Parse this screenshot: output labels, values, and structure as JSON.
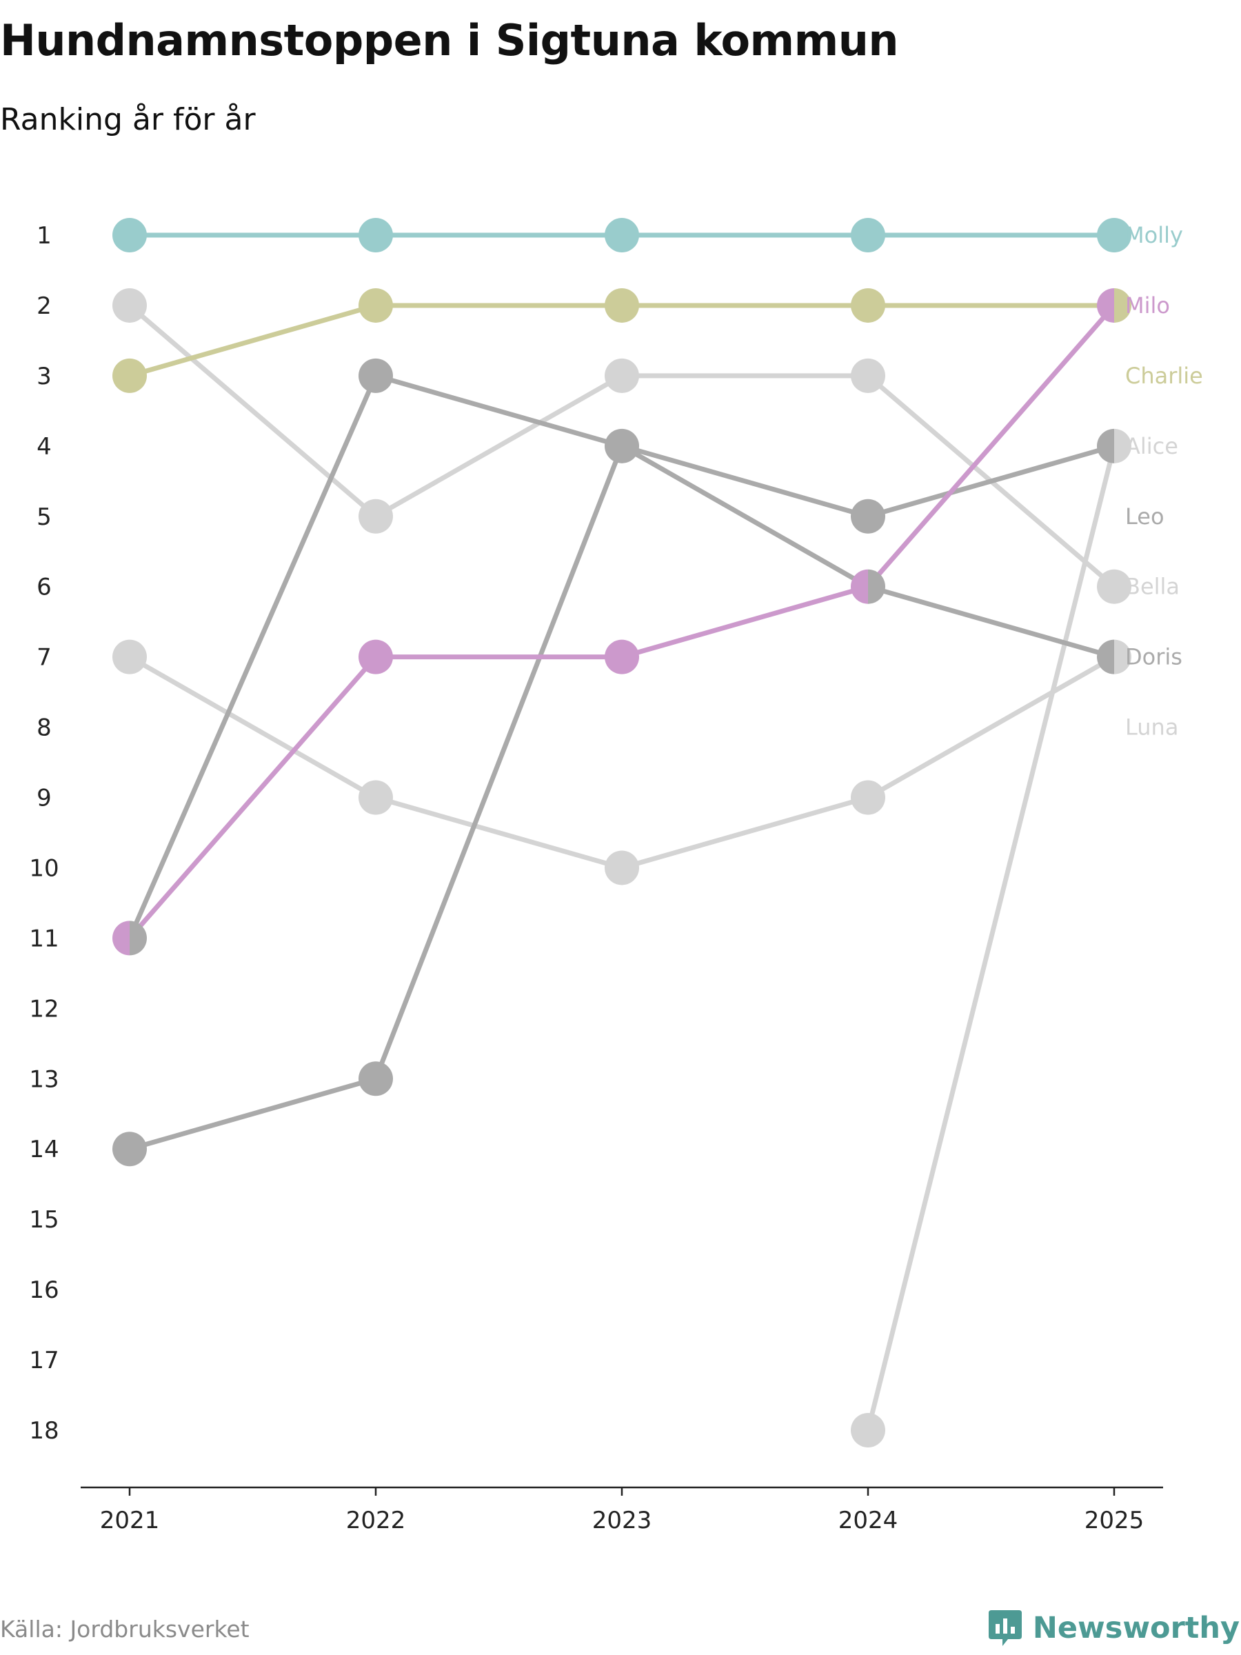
{
  "title": "Hundnamnstoppen i Sigtuna kommun",
  "subtitle": "Ranking år för år",
  "source": "Källa: Jordbruksverket",
  "brand": "Newsworthy",
  "chart_data": {
    "type": "line",
    "x": [
      "2021",
      "2022",
      "2023",
      "2024",
      "2025"
    ],
    "y_ticks": [
      "1",
      "2",
      "3",
      "4",
      "5",
      "6",
      "7",
      "8",
      "9",
      "10",
      "11",
      "12",
      "13",
      "14",
      "15",
      "16",
      "17",
      "18"
    ],
    "ylim": [
      1,
      18
    ],
    "y_reversed": true,
    "series": [
      {
        "name": "Molly",
        "color": "#99cccc",
        "values": [
          1,
          1,
          1,
          1,
          1
        ],
        "label_rank": 1
      },
      {
        "name": "Milo",
        "color": "#cc99cc",
        "values": [
          11,
          7,
          7,
          6,
          2
        ],
        "label_rank": 2
      },
      {
        "name": "Charlie",
        "color": "#cccc99",
        "values": [
          3,
          2,
          2,
          2,
          2
        ],
        "label_rank": 3
      },
      {
        "name": "Alice",
        "color": "#d4d4d4",
        "values": [
          null,
          null,
          null,
          18,
          4
        ],
        "label_rank": 4
      },
      {
        "name": "Leo",
        "color": "#aaaaaa",
        "values": [
          11,
          3,
          4,
          5,
          4
        ],
        "label_rank": 5
      },
      {
        "name": "Bella",
        "color": "#d4d4d4",
        "values": [
          2,
          5,
          3,
          3,
          6
        ],
        "label_rank": 6
      },
      {
        "name": "Doris",
        "color": "#aaaaaa",
        "values": [
          14,
          13,
          4,
          6,
          7
        ],
        "label_rank": 7
      },
      {
        "name": "Luna",
        "color": "#d4d4d4",
        "values": [
          7,
          9,
          10,
          9,
          7
        ],
        "label_rank": 8
      }
    ]
  }
}
